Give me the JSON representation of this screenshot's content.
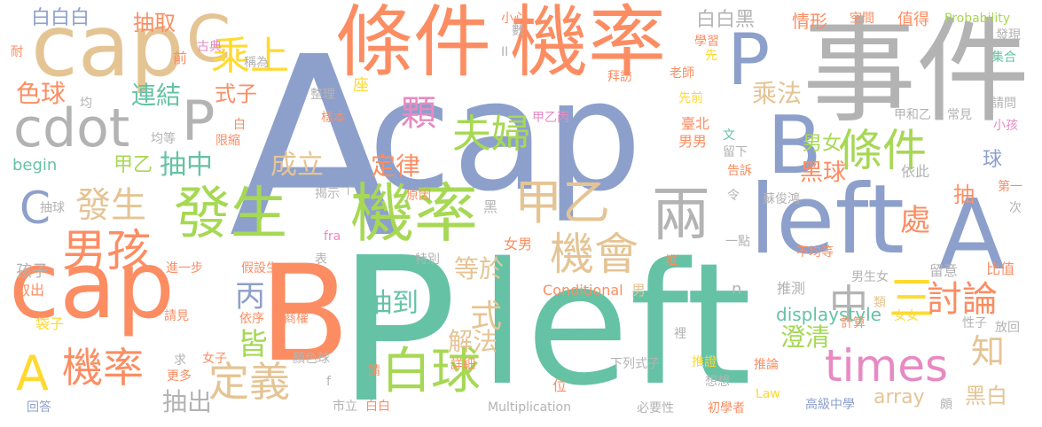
{
  "palette": {
    "blue": "#8DA0CB",
    "orange": "#FC8D62",
    "teal": "#66C2A5",
    "pink": "#E78AC3",
    "green": "#A6D854",
    "yellow": "#FFD92F",
    "tan": "#E5C494",
    "gray": "#B3B3B3"
  },
  "words": [
    {
      "text": "A"
    },
    {
      "text": "cap"
    },
    {
      "text": "P"
    },
    {
      "text": "left"
    },
    {
      "text": "事件"
    },
    {
      "text": "條件"
    },
    {
      "text": "機率"
    },
    {
      "text": "cap"
    },
    {
      "text": "B"
    },
    {
      "text": "cap"
    },
    {
      "text": "C"
    },
    {
      "text": "P"
    },
    {
      "text": "B"
    },
    {
      "text": "left"
    },
    {
      "text": "A"
    },
    {
      "text": "發生"
    },
    {
      "text": "機率"
    },
    {
      "text": "兩"
    },
    {
      "text": "cdot"
    },
    {
      "text": "P"
    },
    {
      "text": "乘上"
    },
    {
      "text": "男孩"
    },
    {
      "text": "甲乙"
    },
    {
      "text": "機會"
    },
    {
      "text": "條件"
    },
    {
      "text": "夫婦"
    },
    {
      "text": "白球"
    },
    {
      "text": "times"
    },
    {
      "text": "A"
    },
    {
      "text": "機率"
    },
    {
      "text": "定義"
    },
    {
      "text": "三"
    },
    {
      "text": "討論"
    },
    {
      "text": "中"
    },
    {
      "text": "C"
    },
    {
      "text": "發生"
    },
    {
      "text": "顆"
    },
    {
      "text": "色球"
    },
    {
      "text": "連結"
    },
    {
      "text": "式子"
    },
    {
      "text": "抽取"
    },
    {
      "text": "白白白"
    },
    {
      "text": "白白黑"
    },
    {
      "text": "情形"
    },
    {
      "text": "空間"
    },
    {
      "text": "值得"
    },
    {
      "text": "Probability"
    },
    {
      "text": "發現"
    },
    {
      "text": "乘法"
    },
    {
      "text": "抽中"
    },
    {
      "text": "甲乙"
    },
    {
      "text": "成立"
    },
    {
      "text": "定律"
    },
    {
      "text": "黑球"
    },
    {
      "text": "男女"
    },
    {
      "text": "球"
    },
    {
      "text": "抽"
    },
    {
      "text": "處"
    },
    {
      "text": "丙"
    },
    {
      "text": "抽到"
    },
    {
      "text": "等於"
    },
    {
      "text": "式"
    },
    {
      "text": "皆"
    },
    {
      "text": "解法"
    },
    {
      "text": "澄清"
    },
    {
      "text": "知"
    },
    {
      "text": "displaystyle"
    },
    {
      "text": "array"
    },
    {
      "text": "黑白"
    },
    {
      "text": "抽出"
    },
    {
      "text": "begin"
    },
    {
      "text": "孩子"
    },
    {
      "text": "取出"
    },
    {
      "text": "袋子"
    },
    {
      "text": "回答"
    },
    {
      "text": "耐"
    },
    {
      "text": "前"
    },
    {
      "text": "古典"
    },
    {
      "text": "稱為"
    },
    {
      "text": "均"
    },
    {
      "text": "均等"
    },
    {
      "text": "整理"
    },
    {
      "text": "座"
    },
    {
      "text": "樣本"
    },
    {
      "text": "限縮"
    },
    {
      "text": "白"
    },
    {
      "text": "甲乙丙"
    },
    {
      "text": "拜訪"
    },
    {
      "text": "臺北"
    },
    {
      "text": "先前"
    },
    {
      "text": "男男"
    },
    {
      "text": "文"
    },
    {
      "text": "留下"
    },
    {
      "text": "告訴"
    },
    {
      "text": "令"
    },
    {
      "text": "第一"
    },
    {
      "text": "次"
    },
    {
      "text": "依此"
    },
    {
      "text": "蘇俊鴻"
    },
    {
      "text": "學習"
    },
    {
      "text": "老師"
    },
    {
      "text": "先"
    },
    {
      "text": "集合"
    },
    {
      "text": "請問"
    },
    {
      "text": "小孩"
    },
    {
      "text": "常見"
    },
    {
      "text": "甲和乙"
    },
    {
      "text": "小心"
    },
    {
      "text": "數"
    },
    {
      "text": "II"
    },
    {
      "text": "揭示「"
    },
    {
      "text": "抽球"
    },
    {
      "text": "原因"
    },
    {
      "text": "黑"
    },
    {
      "text": "女男"
    },
    {
      "text": "特別"
    },
    {
      "text": "進一步"
    },
    {
      "text": "假設生"
    },
    {
      "text": "表"
    },
    {
      "text": "fra"
    },
    {
      "text": "一點"
    },
    {
      "text": "不均等"
    },
    {
      "text": "推"
    },
    {
      "text": "留意"
    },
    {
      "text": "比值"
    },
    {
      "text": "男生女"
    },
    {
      "text": "Conditional"
    },
    {
      "text": "男"
    },
    {
      "text": "n"
    },
    {
      "text": "推測"
    },
    {
      "text": "類"
    },
    {
      "text": "計算"
    },
    {
      "text": "女女"
    },
    {
      "text": "性子"
    },
    {
      "text": "放回"
    },
    {
      "text": "請見"
    },
    {
      "text": "依序"
    },
    {
      "text": "商權"
    },
    {
      "text": "顏色球"
    },
    {
      "text": "女子"
    },
    {
      "text": "求"
    },
    {
      "text": "更多"
    },
    {
      "text": "f"
    },
    {
      "text": "請"
    },
    {
      "text": "市立"
    },
    {
      "text": "白白"
    },
    {
      "text": "詳細"
    },
    {
      "text": "位"
    },
    {
      "text": "裡"
    },
    {
      "text": "下列式子"
    },
    {
      "text": "推證"
    },
    {
      "text": "想想"
    },
    {
      "text": "推論"
    },
    {
      "text": "Law"
    },
    {
      "text": "Multiplication"
    },
    {
      "text": "必要性"
    },
    {
      "text": "初學者"
    },
    {
      "text": "高級中學"
    },
    {
      "text": "頗"
    }
  ]
}
